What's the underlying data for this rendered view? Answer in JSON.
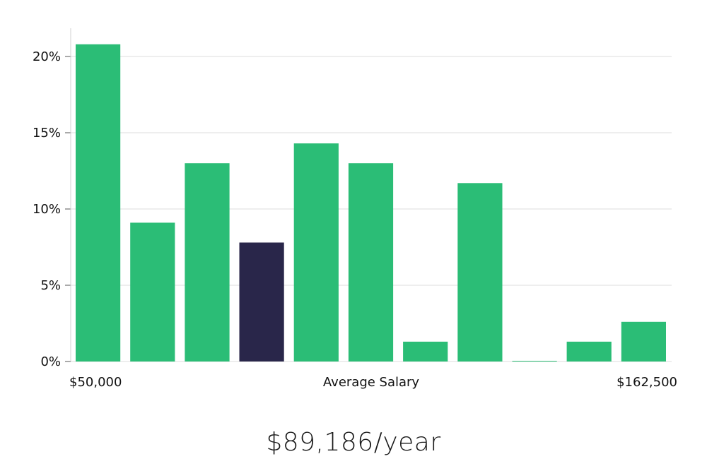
{
  "chart_data": {
    "type": "bar",
    "title": "",
    "xlabel": "Average Salary",
    "ylabel": "",
    "x_range_labels": {
      "min": "$50,000",
      "max": "$162,500"
    },
    "ylim": [
      0,
      22
    ],
    "yticks": [
      {
        "value": 0,
        "label": "0%"
      },
      {
        "value": 5,
        "label": "5%"
      },
      {
        "value": 10,
        "label": "10%"
      },
      {
        "value": 15,
        "label": "15%"
      },
      {
        "value": 20,
        "label": "20%"
      }
    ],
    "values": [
      20.8,
      9.1,
      13.0,
      7.8,
      14.3,
      13.0,
      1.3,
      11.7,
      0.0,
      1.3,
      2.6
    ],
    "highlight_index": 3,
    "colors": {
      "bar": "#2bbd76",
      "highlight": "#29264a",
      "grid": "#dcdcdc",
      "axis": "#d0d0d0"
    },
    "grid": true
  },
  "salary_summary": "$89,186/year"
}
